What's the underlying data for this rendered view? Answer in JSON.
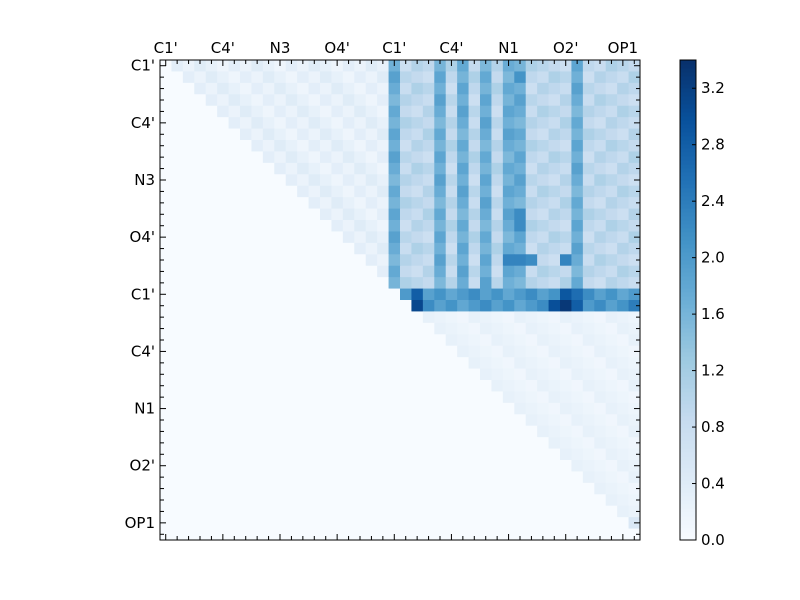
{
  "chart_data": {
    "type": "heatmap",
    "title": "",
    "xlabel": "",
    "ylabel": "",
    "n_rows": 42,
    "n_cols": 42,
    "x_tick_labels": [
      "C1'",
      "C4'",
      "N3",
      "O4'",
      "C1'",
      "C4'",
      "N1",
      "O2'",
      "OP1"
    ],
    "y_tick_labels": [
      "C1'",
      "C4'",
      "N3",
      "O4'",
      "C1'",
      "C4'",
      "N1",
      "O2'",
      "OP1"
    ],
    "tick_label_every_n_cells": 5,
    "colormap": "Blues",
    "vmin": 0.0,
    "vmax": 3.4,
    "colorbar_ticks": [
      0.0,
      0.4,
      0.8,
      1.2,
      1.6,
      2.0,
      2.4,
      2.8,
      3.2
    ],
    "colorbar_tick_labels": [
      "0.0",
      "0.4",
      "0.8",
      "1.2",
      "1.6",
      "2.0",
      "2.4",
      "2.8",
      "3.2"
    ],
    "matrix_structure": "upper triangle only (cells with column > row); lower triangle and diagonal are 0.0",
    "block_baseline_values": {
      "rows_0_to_19_cols_lt_20": 0.15,
      "rows_0_to_19_cols_ge_20": 0.9,
      "rows_20_to_21_cols_ge_20": 2.0,
      "rows_22_to_41": 0.12
    },
    "strong_columns_in_rows_0_to_19": [
      20,
      24,
      26,
      28,
      30,
      31,
      36
    ],
    "strong_column_value": 1.7,
    "peak_cells": [
      {
        "row": 17,
        "col": 30,
        "value": 2.3
      },
      {
        "row": 17,
        "col": 31,
        "value": 2.3
      },
      {
        "row": 17,
        "col": 32,
        "value": 2.2
      },
      {
        "row": 17,
        "col": 35,
        "value": 2.3
      },
      {
        "row": 20,
        "col": 22,
        "value": 2.8
      },
      {
        "row": 21,
        "col": 22,
        "value": 3.1
      },
      {
        "row": 20,
        "col": 35,
        "value": 2.9
      },
      {
        "row": 21,
        "col": 35,
        "value": 3.3
      },
      {
        "row": 21,
        "col": 34,
        "value": 3.0
      },
      {
        "row": 20,
        "col": 36,
        "value": 2.6
      },
      {
        "row": 21,
        "col": 36,
        "value": 2.8
      },
      {
        "row": 21,
        "col": 41,
        "value": 2.4
      },
      {
        "row": 13,
        "col": 31,
        "value": 2.2
      },
      {
        "row": 14,
        "col": 31,
        "value": 2.2
      },
      {
        "row": 1,
        "col": 31,
        "value": 2.1
      },
      {
        "row": 40,
        "col": 41,
        "value": 0.5
      },
      {
        "row": 39,
        "col": 38,
        "value": 0.0
      }
    ],
    "grid": false,
    "legend": "colorbar right"
  }
}
